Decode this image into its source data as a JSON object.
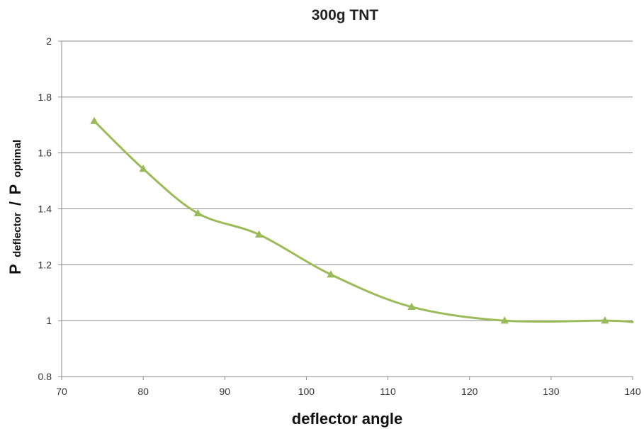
{
  "chart_data": {
    "type": "line",
    "title": "300g TNT",
    "xlabel": "deflector angle",
    "ylabel": {
      "p1": "P",
      "sub1": "deflector",
      "slash": "/",
      "p2": "P",
      "sub2": "optimal"
    },
    "xlim": [
      70,
      140
    ],
    "ylim": [
      0.8,
      2
    ],
    "x_ticks": [
      70,
      80,
      90,
      100,
      110,
      120,
      130,
      140
    ],
    "y_ticks": [
      0.8,
      1,
      1.2,
      1.4,
      1.6,
      1.8,
      2
    ],
    "x_tick_labels": [
      "70",
      "80",
      "90",
      "100",
      "110",
      "120",
      "130",
      "140"
    ],
    "y_tick_labels": [
      "0.8",
      "1",
      "1.2",
      "1.4",
      "1.6",
      "1.8",
      "2"
    ],
    "grid": true,
    "series": [
      {
        "color": "#9bbb59",
        "marker": "triangle",
        "smooth": true,
        "x": [
          74,
          80,
          86.7,
          94.2,
          103,
          112.9,
          124.3,
          136.6
        ],
        "y": [
          1.714,
          1.543,
          1.384,
          1.308,
          1.165,
          1.049,
          1.0,
          1.0
        ],
        "end": {
          "x": 140,
          "y": 0.995
        }
      }
    ]
  }
}
